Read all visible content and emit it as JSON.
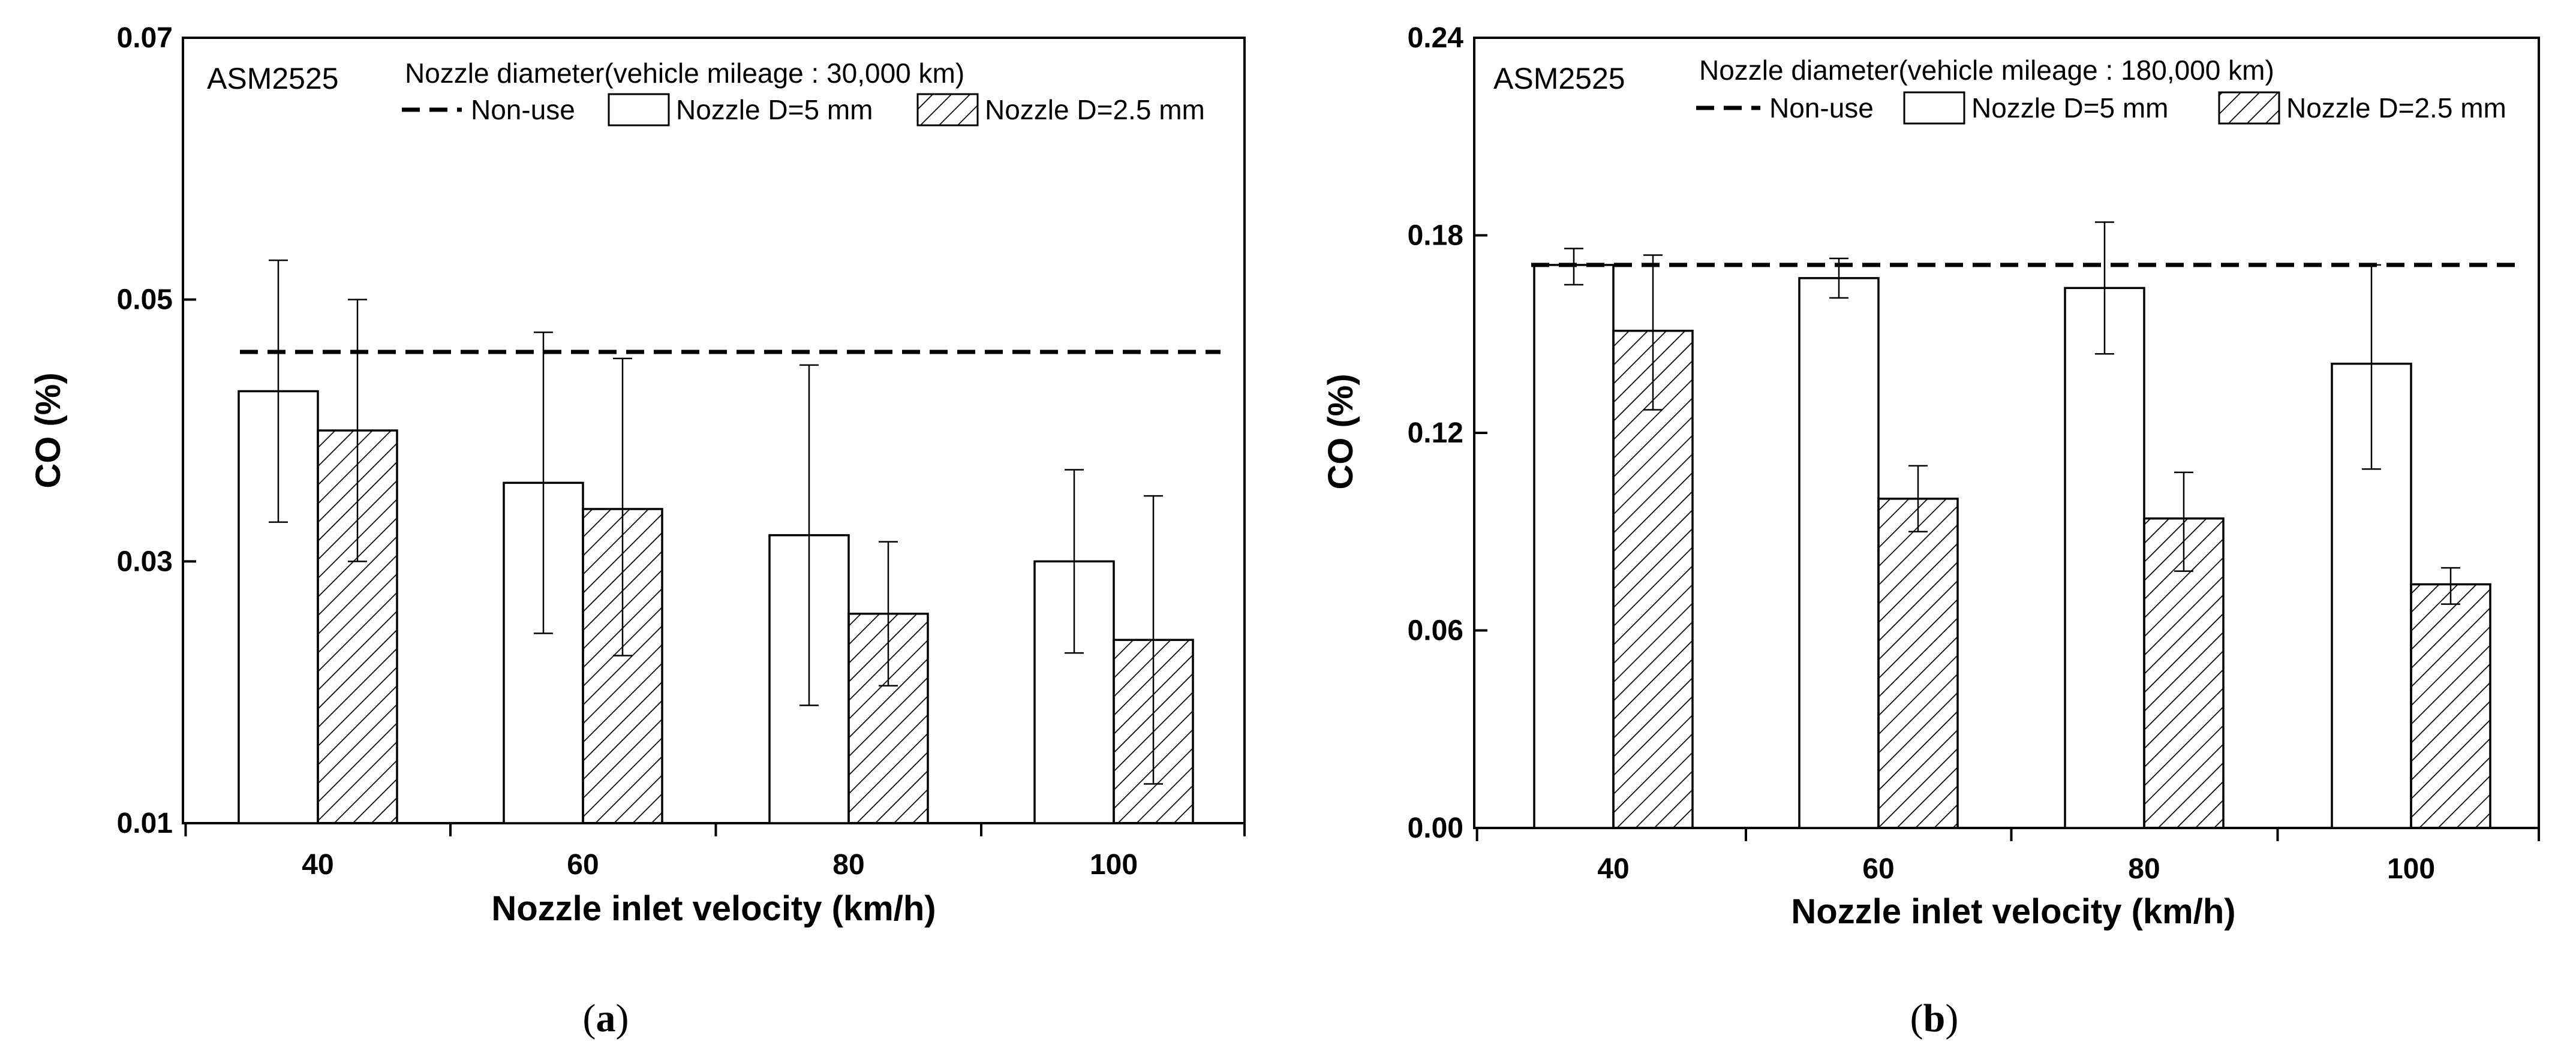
{
  "chart_data": [
    {
      "type": "bar",
      "panel_label": "(a)",
      "panel_letter": "a",
      "box_label": "ASM2525",
      "legend_title": "Nozzle diameter(vehicle mileage : 30,000 km)",
      "legend_position": "top-right",
      "xlabel": "Nozzle inlet velocity (km/h)",
      "ylabel": "CO (%)",
      "ylim": [
        0.01,
        0.07
      ],
      "yticks": [
        "0.01",
        "0.03",
        "0.05",
        "0.07"
      ],
      "categories": [
        "40",
        "60",
        "80",
        "100"
      ],
      "reference_line": {
        "name": "Non-use",
        "value": 0.046
      },
      "series": [
        {
          "name": "Nozzle D=5 mm",
          "pattern": "open",
          "values": [
            0.043,
            0.036,
            0.032,
            0.03
          ],
          "err_low": [
            0.033,
            0.0245,
            0.019,
            0.023
          ],
          "err_high": [
            0.053,
            0.0475,
            0.045,
            0.037
          ]
        },
        {
          "name": "Nozzle D=2.5 mm",
          "pattern": "hatched",
          "values": [
            0.04,
            0.034,
            0.026,
            0.024
          ],
          "err_low": [
            0.03,
            0.0228,
            0.0205,
            0.013
          ],
          "err_high": [
            0.05,
            0.0455,
            0.0315,
            0.035
          ]
        }
      ]
    },
    {
      "type": "bar",
      "panel_label": "(b)",
      "panel_letter": "b",
      "box_label": "ASM2525",
      "legend_title": "Nozzle diameter(vehicle mileage : 180,000 km)",
      "legend_position": "top-right",
      "xlabel": "Nozzle inlet velocity (km/h)",
      "ylabel": "CO (%)",
      "ylim": [
        0.0,
        0.24
      ],
      "yticks": [
        "0.00",
        "0.06",
        "0.12",
        "0.18",
        "0.24"
      ],
      "categories": [
        "40",
        "60",
        "80",
        "100"
      ],
      "reference_line": {
        "name": "Non-use",
        "value": 0.171
      },
      "series": [
        {
          "name": "Nozzle D=5 mm",
          "pattern": "open",
          "values": [
            0.171,
            0.167,
            0.164,
            0.141
          ],
          "err_low": [
            0.165,
            0.161,
            0.144,
            0.109
          ],
          "err_high": [
            0.176,
            0.173,
            0.184,
            0.171
          ]
        },
        {
          "name": "Nozzle D=2.5 mm",
          "pattern": "hatched",
          "values": [
            0.151,
            0.1,
            0.094,
            0.074
          ],
          "err_low": [
            0.127,
            0.09,
            0.078,
            0.068
          ],
          "err_high": [
            0.174,
            0.11,
            0.108,
            0.079
          ]
        }
      ]
    }
  ]
}
